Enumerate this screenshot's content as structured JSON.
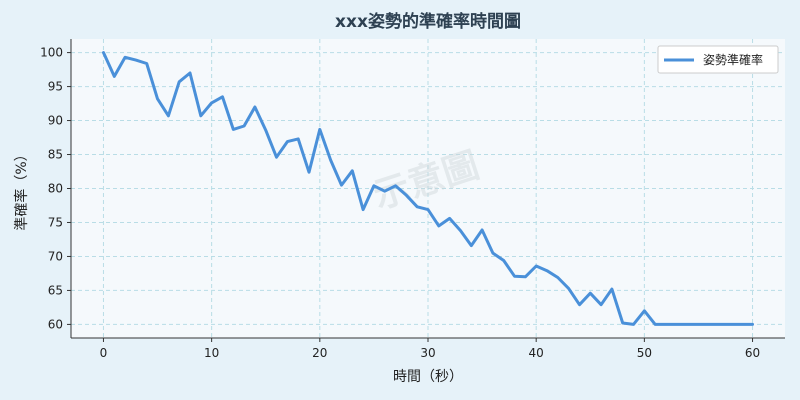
{
  "chart_data": {
    "type": "line",
    "title": "xxx姿勢的準確率時間圖",
    "xlabel": "時間（秒）",
    "ylabel": "準確率（%）",
    "xlim": [
      -3,
      63
    ],
    "ylim": [
      58,
      102
    ],
    "xticks": [
      0,
      10,
      20,
      30,
      40,
      50,
      60
    ],
    "yticks": [
      60,
      65,
      70,
      75,
      80,
      85,
      90,
      95,
      100
    ],
    "grid": true,
    "legend_position": "top-right",
    "series": [
      {
        "name": "姿勢準確率",
        "color": "#4a90d9",
        "x": [
          0,
          1,
          2,
          3,
          4,
          5,
          6,
          7,
          8,
          9,
          10,
          11,
          12,
          13,
          14,
          15,
          16,
          17,
          18,
          19,
          20,
          21,
          22,
          23,
          24,
          25,
          26,
          27,
          28,
          29,
          30,
          31,
          32,
          33,
          34,
          35,
          36,
          37,
          38,
          39,
          40,
          41,
          42,
          43,
          44,
          45,
          46,
          47,
          48,
          49,
          50,
          51,
          52,
          53,
          54,
          55,
          56,
          57,
          58,
          59,
          60
        ],
        "values": [
          100,
          96.5,
          99.3,
          98.9,
          98.4,
          93.2,
          90.7,
          95.7,
          97,
          90.7,
          92.6,
          93.5,
          88.7,
          89.2,
          92,
          88.6,
          84.6,
          86.9,
          87.3,
          82.4,
          88.7,
          84.2,
          80.5,
          82.6,
          76.9,
          80.4,
          79.6,
          80.4,
          79,
          77.3,
          76.9,
          74.5,
          75.6,
          73.8,
          71.6,
          73.9,
          70.5,
          69.4,
          67.1,
          67,
          68.6,
          67.9,
          66.9,
          65.3,
          62.9,
          64.6,
          62.9,
          65.2,
          60.2,
          60,
          62,
          60,
          60,
          60,
          60,
          60,
          60,
          60,
          60,
          60,
          60
        ]
      }
    ]
  },
  "watermark": "示意圖"
}
